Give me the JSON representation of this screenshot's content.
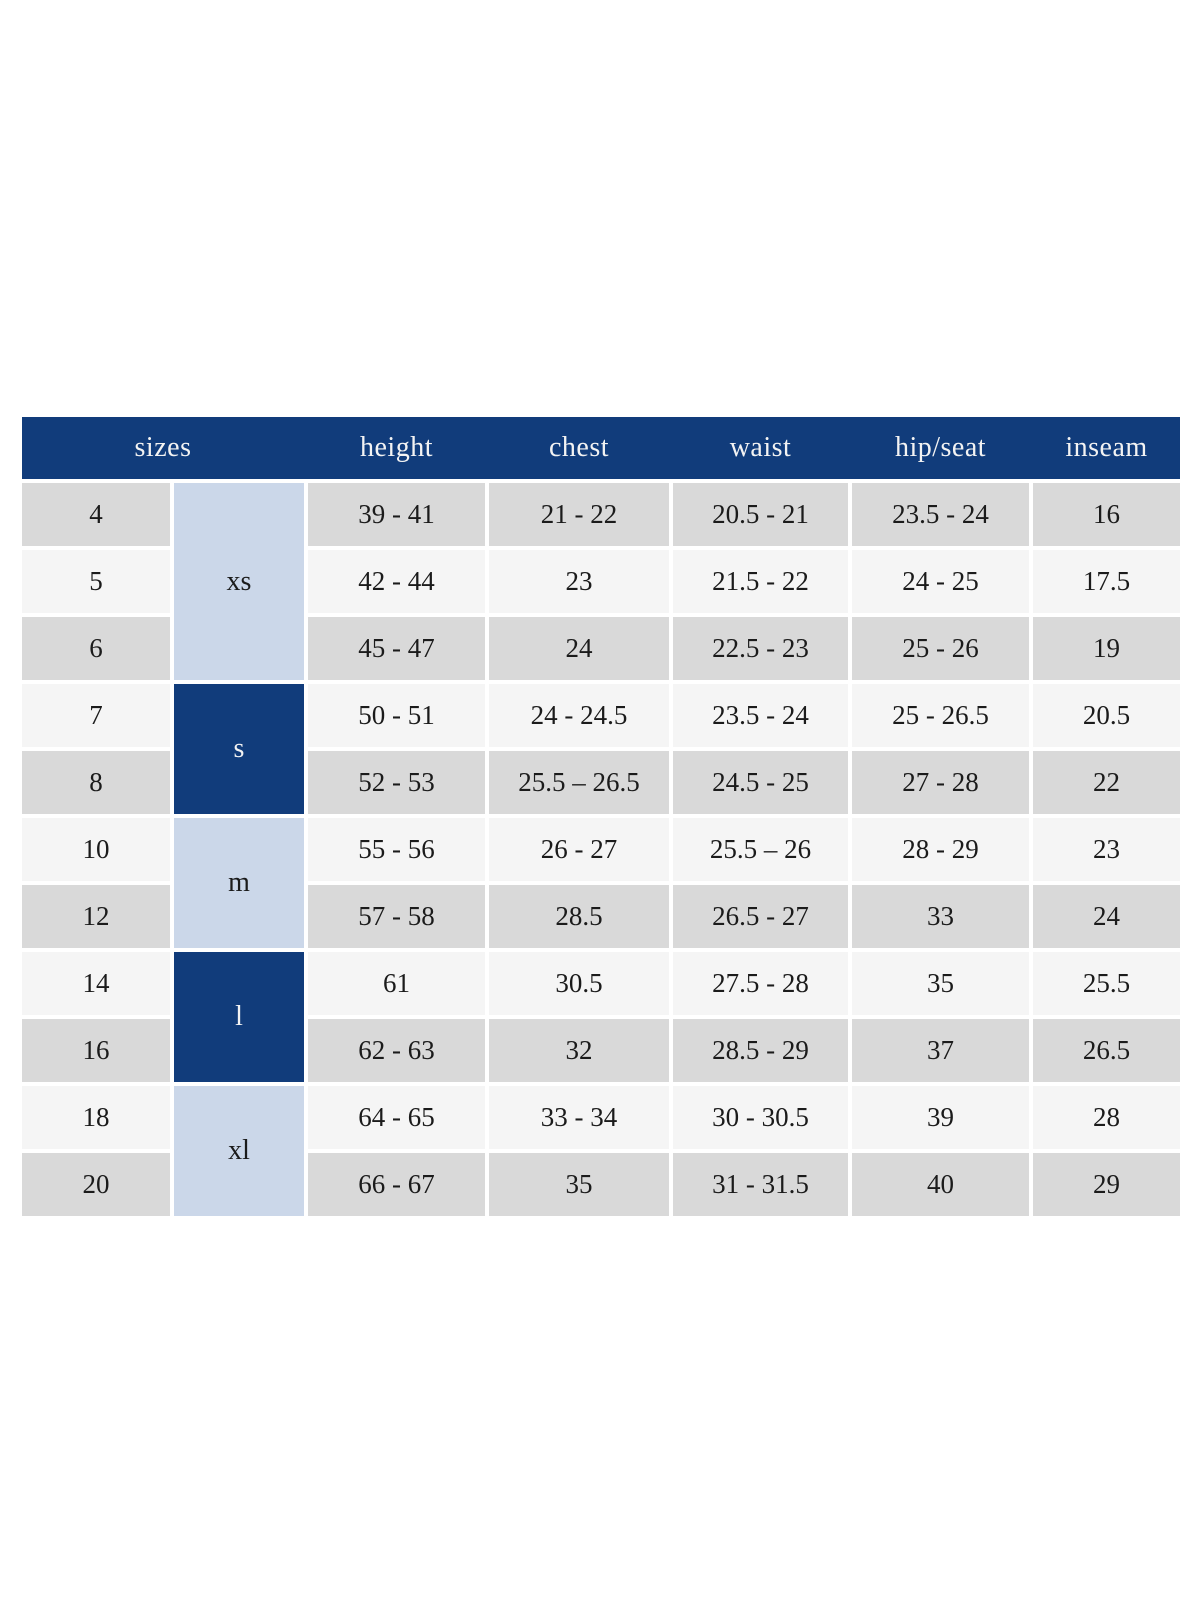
{
  "page": {
    "background": "#ffffff"
  },
  "colors": {
    "header_navy": "#113c7b",
    "header_text": "#f3f3f3",
    "row_gray": "#d9d9d9",
    "row_light": "#f5f5f5",
    "group_light_blue": "#cbd7e9",
    "group_dark_navy": "#113c7b",
    "cell_text": "#1b1b1b"
  },
  "size_chart": {
    "header": {
      "sizes": "sizes",
      "height": "height",
      "chest": "chest",
      "waist": "waist",
      "hip_seat": "hip/seat",
      "inseam": "inseam"
    },
    "groups": [
      {
        "label": "xs",
        "rows": 3,
        "style": "light-blue"
      },
      {
        "label": "s",
        "rows": 2,
        "style": "dark-blue"
      },
      {
        "label": "m",
        "rows": 2,
        "style": "light-blue"
      },
      {
        "label": "l",
        "rows": 2,
        "style": "dark-blue"
      },
      {
        "label": "xl",
        "rows": 2,
        "style": "light-blue"
      }
    ],
    "rows": [
      {
        "size": "4",
        "height": "39 - 41",
        "chest": "21 - 22",
        "waist": "20.5 - 21",
        "hip_seat": "23.5 - 24",
        "inseam": "16"
      },
      {
        "size": "5",
        "height": "42 - 44",
        "chest": "23",
        "waist": "21.5 - 22",
        "hip_seat": "24 - 25",
        "inseam": "17.5"
      },
      {
        "size": "6",
        "height": "45 - 47",
        "chest": "24",
        "waist": "22.5 - 23",
        "hip_seat": "25 - 26",
        "inseam": "19"
      },
      {
        "size": "7",
        "height": "50 - 51",
        "chest": "24 - 24.5",
        "waist": "23.5 - 24",
        "hip_seat": "25 - 26.5",
        "inseam": "20.5"
      },
      {
        "size": "8",
        "height": "52 - 53",
        "chest": "25.5 – 26.5",
        "waist": "24.5 - 25",
        "hip_seat": "27 - 28",
        "inseam": "22"
      },
      {
        "size": "10",
        "height": "55 - 56",
        "chest": "26 - 27",
        "waist": "25.5 – 26",
        "hip_seat": "28 - 29",
        "inseam": "23"
      },
      {
        "size": "12",
        "height": "57 - 58",
        "chest": "28.5",
        "waist": "26.5 - 27",
        "hip_seat": "33",
        "inseam": "24"
      },
      {
        "size": "14",
        "height": "61",
        "chest": "30.5",
        "waist": "27.5 - 28",
        "hip_seat": "35",
        "inseam": "25.5"
      },
      {
        "size": "16",
        "height": "62 - 63",
        "chest": "32",
        "waist": "28.5 - 29",
        "hip_seat": "37",
        "inseam": "26.5"
      },
      {
        "size": "18",
        "height": "64 - 65",
        "chest": "33 - 34",
        "waist": "30 - 30.5",
        "hip_seat": "39",
        "inseam": "28"
      },
      {
        "size": "20",
        "height": "66 - 67",
        "chest": "35",
        "waist": "31 - 31.5",
        "hip_seat": "40",
        "inseam": "29"
      }
    ]
  },
  "chart_data": {
    "type": "table",
    "columns": [
      "sizes",
      "height",
      "chest",
      "waist",
      "hip/seat",
      "inseam"
    ],
    "size_groups": [
      {
        "label": "xs",
        "sizes": [
          "4",
          "5",
          "6"
        ]
      },
      {
        "label": "s",
        "sizes": [
          "7",
          "8"
        ]
      },
      {
        "label": "m",
        "sizes": [
          "10",
          "12"
        ]
      },
      {
        "label": "l",
        "sizes": [
          "14",
          "16"
        ]
      },
      {
        "label": "xl",
        "sizes": [
          "18",
          "20"
        ]
      }
    ],
    "rows": [
      [
        "4",
        "39 - 41",
        "21 - 22",
        "20.5 - 21",
        "23.5 - 24",
        "16"
      ],
      [
        "5",
        "42 - 44",
        "23",
        "21.5 - 22",
        "24 - 25",
        "17.5"
      ],
      [
        "6",
        "45 - 47",
        "24",
        "22.5 - 23",
        "25 - 26",
        "19"
      ],
      [
        "7",
        "50 - 51",
        "24 - 24.5",
        "23.5 - 24",
        "25 - 26.5",
        "20.5"
      ],
      [
        "8",
        "52 - 53",
        "25.5 – 26.5",
        "24.5 - 25",
        "27 - 28",
        "22"
      ],
      [
        "10",
        "55 - 56",
        "26 - 27",
        "25.5 – 26",
        "28 - 29",
        "23"
      ],
      [
        "12",
        "57 - 58",
        "28.5",
        "26.5 - 27",
        "33",
        "24"
      ],
      [
        "14",
        "61",
        "30.5",
        "27.5 - 28",
        "35",
        "25.5"
      ],
      [
        "16",
        "62 - 63",
        "32",
        "28.5 - 29",
        "37",
        "26.5"
      ],
      [
        "18",
        "64 - 65",
        "33 - 34",
        "30 - 30.5",
        "39",
        "28"
      ],
      [
        "20",
        "66 - 67",
        "35",
        "31 - 31.5",
        "40",
        "29"
      ]
    ]
  }
}
